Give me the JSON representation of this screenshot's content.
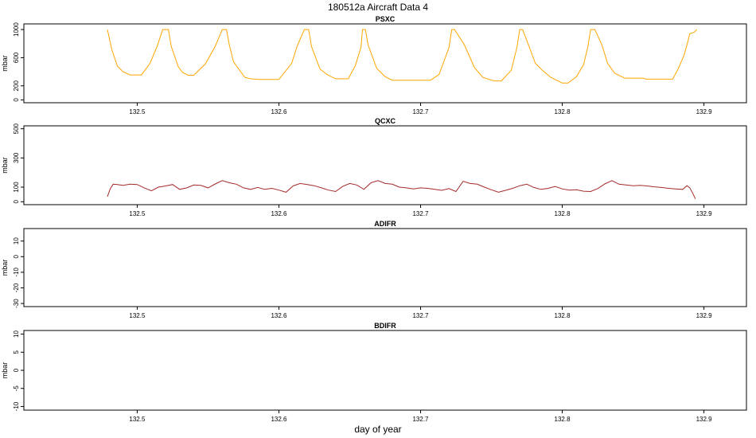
{
  "title": "180512a    Aircraft Data 4",
  "xlabel": "day of year",
  "colors": {
    "axis": "#000000"
  },
  "chart_data": [
    {
      "type": "line",
      "title": "PSXC",
      "ylabel": "mbar",
      "color": "#FFA500",
      "xlim": [
        132.42,
        132.93
      ],
      "ylim": [
        -40,
        1080
      ],
      "xticks": [
        132.5,
        132.6,
        132.7,
        132.8,
        132.9
      ],
      "xtick_labels": [
        "132.5",
        "132.6",
        "132.7",
        "132.8",
        "132.9"
      ],
      "yticks": [
        0,
        200,
        600,
        1000
      ],
      "ytick_labels": [
        "0",
        "200",
        "600",
        "1000"
      ],
      "series": [
        {
          "x": [
            132.479,
            132.482,
            132.486,
            132.49,
            132.495,
            132.503,
            132.509,
            132.514,
            132.518,
            132.52,
            132.522,
            132.524,
            132.529,
            132.532,
            132.536,
            132.54,
            132.548,
            132.555,
            132.56,
            132.563,
            132.565,
            132.568,
            132.572,
            132.576,
            132.58,
            132.586,
            132.6,
            132.609,
            132.613,
            132.618,
            132.619,
            132.621,
            132.623,
            132.629,
            132.634,
            132.64,
            132.649,
            132.654,
            132.658,
            132.659,
            132.661,
            132.663,
            132.669,
            132.675,
            132.68,
            132.7,
            132.707,
            132.713,
            132.716,
            132.72,
            132.722,
            132.724,
            132.731,
            132.738,
            132.744,
            132.752,
            132.757,
            132.764,
            132.768,
            132.77,
            132.772,
            132.776,
            132.781,
            132.786,
            132.792,
            132.8,
            132.804,
            132.81,
            132.815,
            132.818,
            132.82,
            132.823,
            132.828,
            132.832,
            132.837,
            132.844,
            132.857,
            132.859,
            132.869,
            132.878,
            132.882,
            132.886,
            132.888,
            132.89,
            132.893,
            132.895
          ],
          "y": [
            1000,
            720,
            480,
            400,
            355,
            355,
            520,
            760,
            1000,
            1000,
            1000,
            760,
            470,
            390,
            350,
            350,
            510,
            760,
            1000,
            1000,
            780,
            540,
            430,
            320,
            300,
            290,
            290,
            520,
            770,
            1000,
            1000,
            1000,
            760,
            440,
            360,
            300,
            300,
            490,
            750,
            1000,
            1000,
            780,
            450,
            330,
            280,
            280,
            280,
            360,
            520,
            740,
            1000,
            1000,
            780,
            460,
            320,
            270,
            270,
            420,
            750,
            1000,
            1000,
            790,
            520,
            420,
            320,
            240,
            240,
            330,
            500,
            750,
            1000,
            1000,
            780,
            520,
            380,
            310,
            310,
            295,
            295,
            295,
            450,
            640,
            780,
            940,
            960,
            1000
          ]
        }
      ]
    },
    {
      "type": "line",
      "title": "QCXC",
      "ylabel": "mbar",
      "color": "#A52A2A",
      "xlim": [
        132.42,
        132.93
      ],
      "ylim": [
        -20,
        520
      ],
      "xticks": [
        132.5,
        132.6,
        132.7,
        132.8,
        132.9
      ],
      "xtick_labels": [
        "132.5",
        "132.6",
        "132.7",
        "132.8",
        "132.9"
      ],
      "yticks": [
        0,
        100,
        300,
        500
      ],
      "ytick_labels": [
        "0",
        "100",
        "300",
        "500"
      ],
      "series": [
        {
          "x": [
            132.479,
            132.481,
            132.483,
            132.486,
            132.49,
            132.495,
            132.5,
            132.505,
            132.51,
            132.515,
            132.52,
            132.525,
            132.53,
            132.535,
            132.54,
            132.545,
            132.55,
            132.555,
            132.56,
            132.565,
            132.57,
            132.575,
            132.58,
            132.585,
            132.59,
            132.595,
            132.6,
            132.605,
            132.61,
            132.615,
            132.62,
            132.625,
            132.63,
            132.635,
            132.64,
            132.645,
            132.65,
            132.655,
            132.66,
            132.665,
            132.67,
            132.675,
            132.68,
            132.685,
            132.69,
            132.695,
            132.7,
            132.705,
            132.71,
            132.715,
            132.72,
            132.725,
            132.73,
            132.735,
            132.74,
            132.745,
            132.75,
            132.755,
            132.76,
            132.765,
            132.77,
            132.775,
            132.78,
            132.785,
            132.79,
            132.795,
            132.8,
            132.805,
            132.81,
            132.815,
            132.82,
            132.825,
            132.83,
            132.835,
            132.84,
            132.845,
            132.85,
            132.855,
            132.86,
            132.865,
            132.87,
            132.875,
            132.88,
            132.885,
            132.888,
            132.89,
            132.892,
            132.894
          ],
          "y": [
            35,
            90,
            120,
            118,
            112,
            120,
            118,
            95,
            75,
            100,
            108,
            118,
            85,
            95,
            115,
            112,
            95,
            122,
            145,
            130,
            120,
            95,
            85,
            98,
            85,
            92,
            80,
            65,
            108,
            125,
            118,
            110,
            95,
            80,
            70,
            105,
            125,
            115,
            85,
            130,
            145,
            125,
            120,
            100,
            95,
            88,
            95,
            92,
            85,
            78,
            90,
            70,
            140,
            125,
            120,
            100,
            82,
            65,
            78,
            92,
            110,
            120,
            98,
            85,
            92,
            105,
            88,
            80,
            82,
            72,
            70,
            90,
            122,
            145,
            120,
            115,
            110,
            112,
            108,
            102,
            98,
            92,
            88,
            85,
            110,
            95,
            60,
            20
          ]
        }
      ]
    },
    {
      "type": "line",
      "title": "ADIFR",
      "ylabel": "mbar",
      "xlim": [
        132.42,
        132.93
      ],
      "ylim": [
        -32,
        18
      ],
      "xticks": [
        132.5,
        132.6,
        132.7,
        132.8,
        132.9
      ],
      "xtick_labels": [
        "132.5",
        "132.6",
        "132.7",
        "132.8",
        "132.9"
      ],
      "yticks": [
        -30,
        -20,
        -10,
        0,
        10
      ],
      "ytick_labels": [
        "-30",
        "-20",
        "-10",
        "0",
        "10"
      ],
      "series": []
    },
    {
      "type": "line",
      "title": "BDIFR",
      "ylabel": "mbar",
      "xlim": [
        132.42,
        132.93
      ],
      "ylim": [
        -11,
        11
      ],
      "xticks": [
        132.5,
        132.6,
        132.7,
        132.8,
        132.9
      ],
      "xtick_labels": [
        "132.5",
        "132.6",
        "132.7",
        "132.8",
        "132.9"
      ],
      "yticks": [
        -10,
        -5,
        0,
        5,
        10
      ],
      "ytick_labels": [
        "-10",
        "-5",
        "0",
        "5",
        "10"
      ],
      "series": []
    }
  ]
}
